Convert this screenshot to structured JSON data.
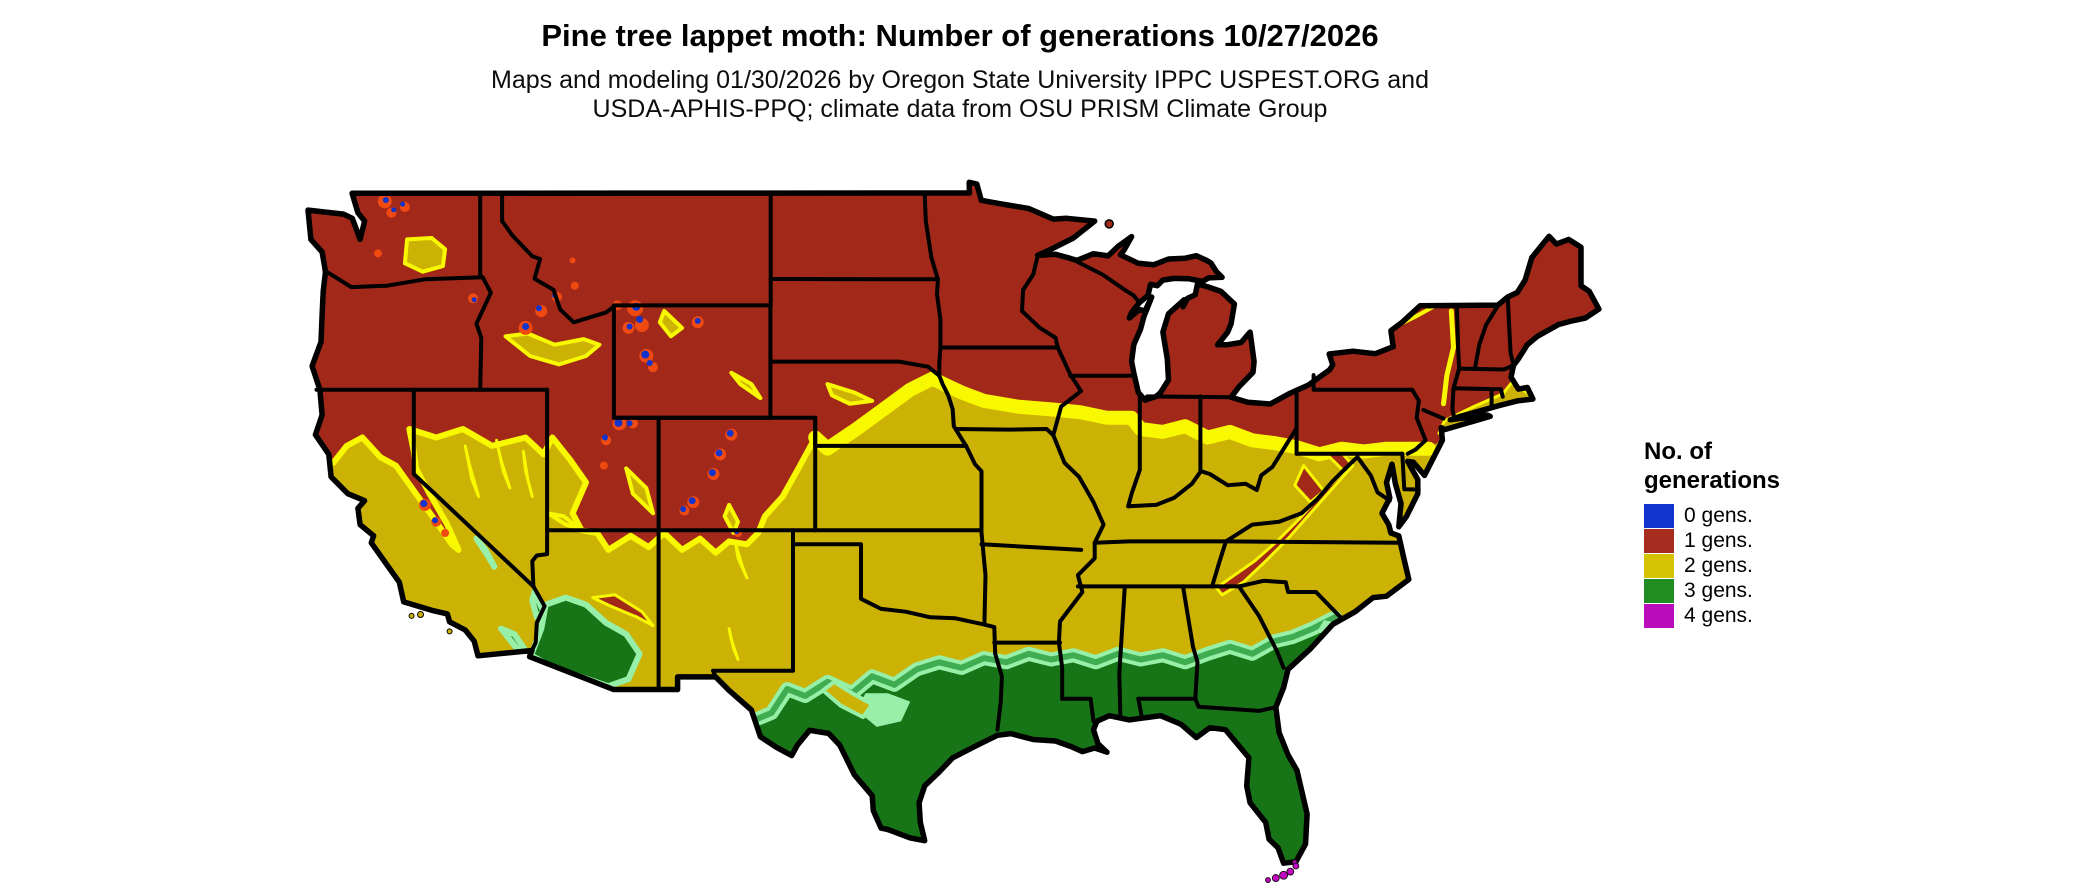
{
  "title": "Pine tree lappet moth: Number of generations 10/27/2026",
  "subtitle": {
    "line1": "Maps and modeling 01/30/2026 by Oregon State University IPPC USPEST.ORG and",
    "line2": "USDA-APHIS-PPQ; climate data from OSU PRISM Climate Group"
  },
  "legend": {
    "title_line1": "No. of",
    "title_line2": "generations",
    "items": [
      {
        "label": "0 gens.",
        "color": "#1135CC"
      },
      {
        "label": "1 gens.",
        "color": "#A52C1E"
      },
      {
        "label": "2 gens.",
        "color": "#D6C304"
      },
      {
        "label": "3 gens.",
        "color": "#218C21"
      },
      {
        "label": "4 gens.",
        "color": "#BB0CBB"
      }
    ]
  },
  "map": {
    "type": "choropleth-raster",
    "area": "Contiguous United States with black state boundaries on white background",
    "colors": {
      "generations_0": "#1135CC",
      "generations_1": "#A2281A",
      "generations_2": "#CBB204",
      "generations_3": "#177517",
      "generations_4": "#C008C0",
      "transition_0_to_1_orange": "#F04A10",
      "transition_1_to_2_bright_yellow": "#F8F800",
      "transition_2_to_3_pale_green": "#98F0A8",
      "transition_2_to_3_mid_green": "#3FAC52",
      "state_border": "#000000",
      "water_background": "#FFFFFF"
    },
    "classes": [
      {
        "generations": 0,
        "color": "#1135CC",
        "areas": "highest peaks of the Cascades, Sierra Nevada and Rocky Mountains (small blue specks with orange halos)"
      },
      {
        "generations": 1,
        "color": "#A2281A",
        "areas": "northern tier of states, Great Lakes region, New England, Appalachian ridge and most of the mountain West"
      },
      {
        "generations": 2,
        "color": "#CBB204",
        "areas": "central band from the mid-Atlantic through the Midwest, plains, Texas panhandle, Southwest valleys and California coast; bright-yellow fringe along its northern edge"
      },
      {
        "generations": 3,
        "color": "#177517",
        "areas": "Gulf Coast states, southern Texas, Florida, southern Georgia/Carolina coast and low deserts of Arizona and southeast California; pale-green fringe along its northern edge"
      },
      {
        "generations": 4,
        "color": "#C008C0",
        "areas": "Florida Keys"
      }
    ]
  }
}
